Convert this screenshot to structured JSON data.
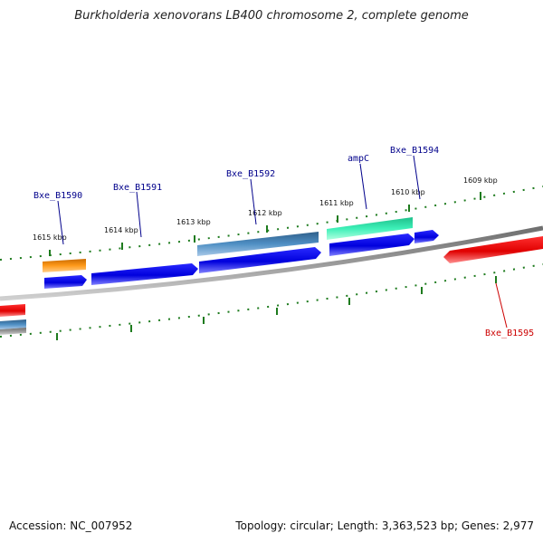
{
  "title": "Burkholderia xenovorans LB400 chromosome 2, complete genome",
  "footer": {
    "accession": "Accession: NC_007952",
    "topology": "Topology: circular; Length: 3,363,523 bp; Genes: 2,977"
  },
  "ticks": [
    "1609 kbp",
    "1610 kbp",
    "1611 kbp",
    "1612 kbp",
    "1613 kbp",
    "1614 kbp",
    "1615 kbp"
  ],
  "genes": [
    {
      "name": "Bxe_B1590",
      "color": "#00008b"
    },
    {
      "name": "Bxe_B1591",
      "color": "#00008b"
    },
    {
      "name": "Bxe_B1592",
      "color": "#00008b"
    },
    {
      "name": "ampC",
      "color": "#00008b"
    },
    {
      "name": "Bxe_B1594",
      "color": "#00008b"
    },
    {
      "name": "Bxe_B1595",
      "color": "#cc0000"
    }
  ],
  "colors": {
    "forward_cds": "#0000ee",
    "reverse_cds": "#ee0000",
    "steelblue_feature": "#4682b4",
    "orange_feature": "#ff8c00",
    "aquamarine_feature": "#33e6b0",
    "backbone": "#8a8a8a",
    "tick": "#1e7b1e"
  }
}
